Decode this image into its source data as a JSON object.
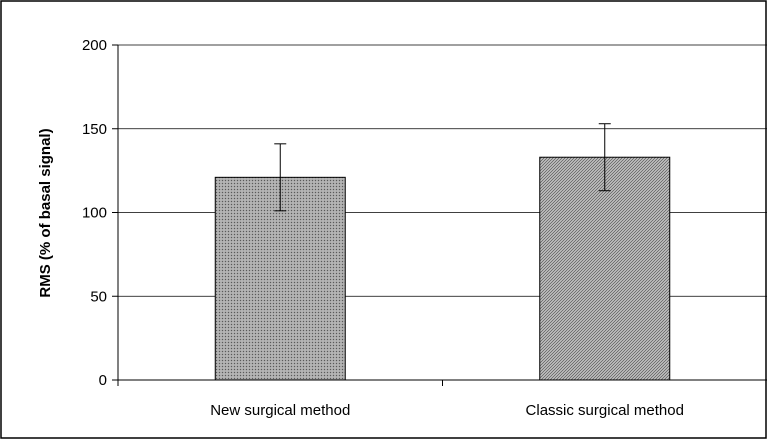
{
  "chart_data": {
    "type": "bar",
    "title": "",
    "xlabel": "",
    "ylabel": "RMS (% of basal signal)",
    "categories": [
      "New surgical method",
      "Classic surgical method"
    ],
    "values": [
      121,
      133
    ],
    "error": [
      20,
      20
    ],
    "ylim": [
      0,
      200
    ],
    "yticks": [
      0,
      50,
      100,
      150,
      200
    ],
    "ytick_labels": [
      "0",
      "50",
      "100",
      "150",
      "200"
    ],
    "grid": true,
    "legend": "none",
    "bar_fills": [
      "pattern-fine-dots",
      "pattern-diagonal-hatch"
    ]
  }
}
